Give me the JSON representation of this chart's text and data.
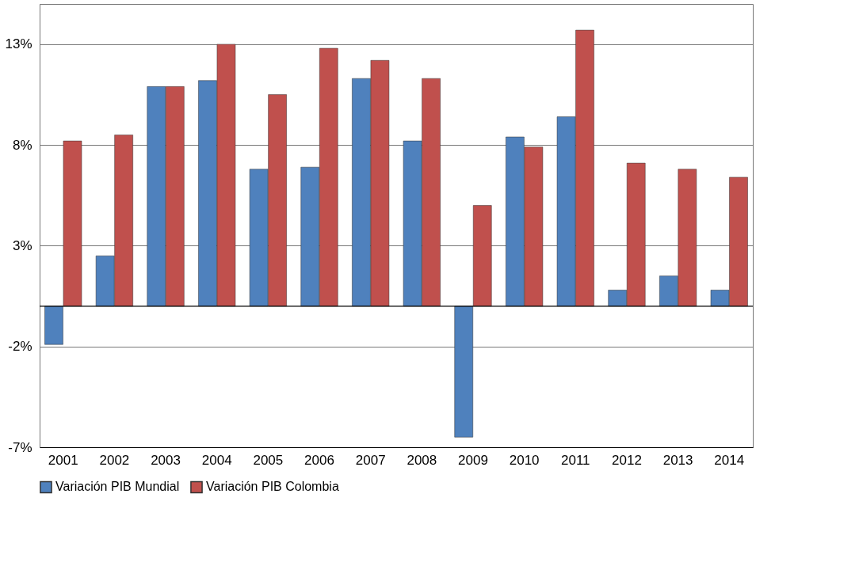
{
  "chart_data": {
    "type": "bar",
    "categories": [
      "2001",
      "2002",
      "2003",
      "2004",
      "2005",
      "2006",
      "2007",
      "2008",
      "2009",
      "2010",
      "2011",
      "2012",
      "2013",
      "2014"
    ],
    "series": [
      {
        "name": "Variación PIB Mundial",
        "color": "#4f81bd",
        "values": [
          -1.9,
          2.5,
          10.9,
          11.2,
          6.8,
          6.9,
          11.3,
          8.2,
          -6.5,
          8.4,
          9.4,
          0.8,
          1.5,
          0.8
        ]
      },
      {
        "name": "Variación PIB Colombia",
        "color": "#c0504d",
        "values": [
          8.2,
          8.5,
          10.9,
          13.0,
          10.5,
          12.8,
          12.2,
          11.3,
          5.0,
          7.9,
          13.7,
          7.1,
          6.8,
          6.4
        ]
      }
    ],
    "ylim": [
      -7,
      15
    ],
    "yticks": [
      {
        "value": -7,
        "label": "-7%"
      },
      {
        "value": -2,
        "label": "-2%"
      },
      {
        "value": 3,
        "label": "3%"
      },
      {
        "value": 8,
        "label": "8%"
      },
      {
        "value": 13,
        "label": "13%"
      }
    ],
    "ref_lines": [
      {
        "axis": "y",
        "value": 0,
        "color": "#000000"
      }
    ],
    "grid": "y",
    "legend": "bottom"
  }
}
